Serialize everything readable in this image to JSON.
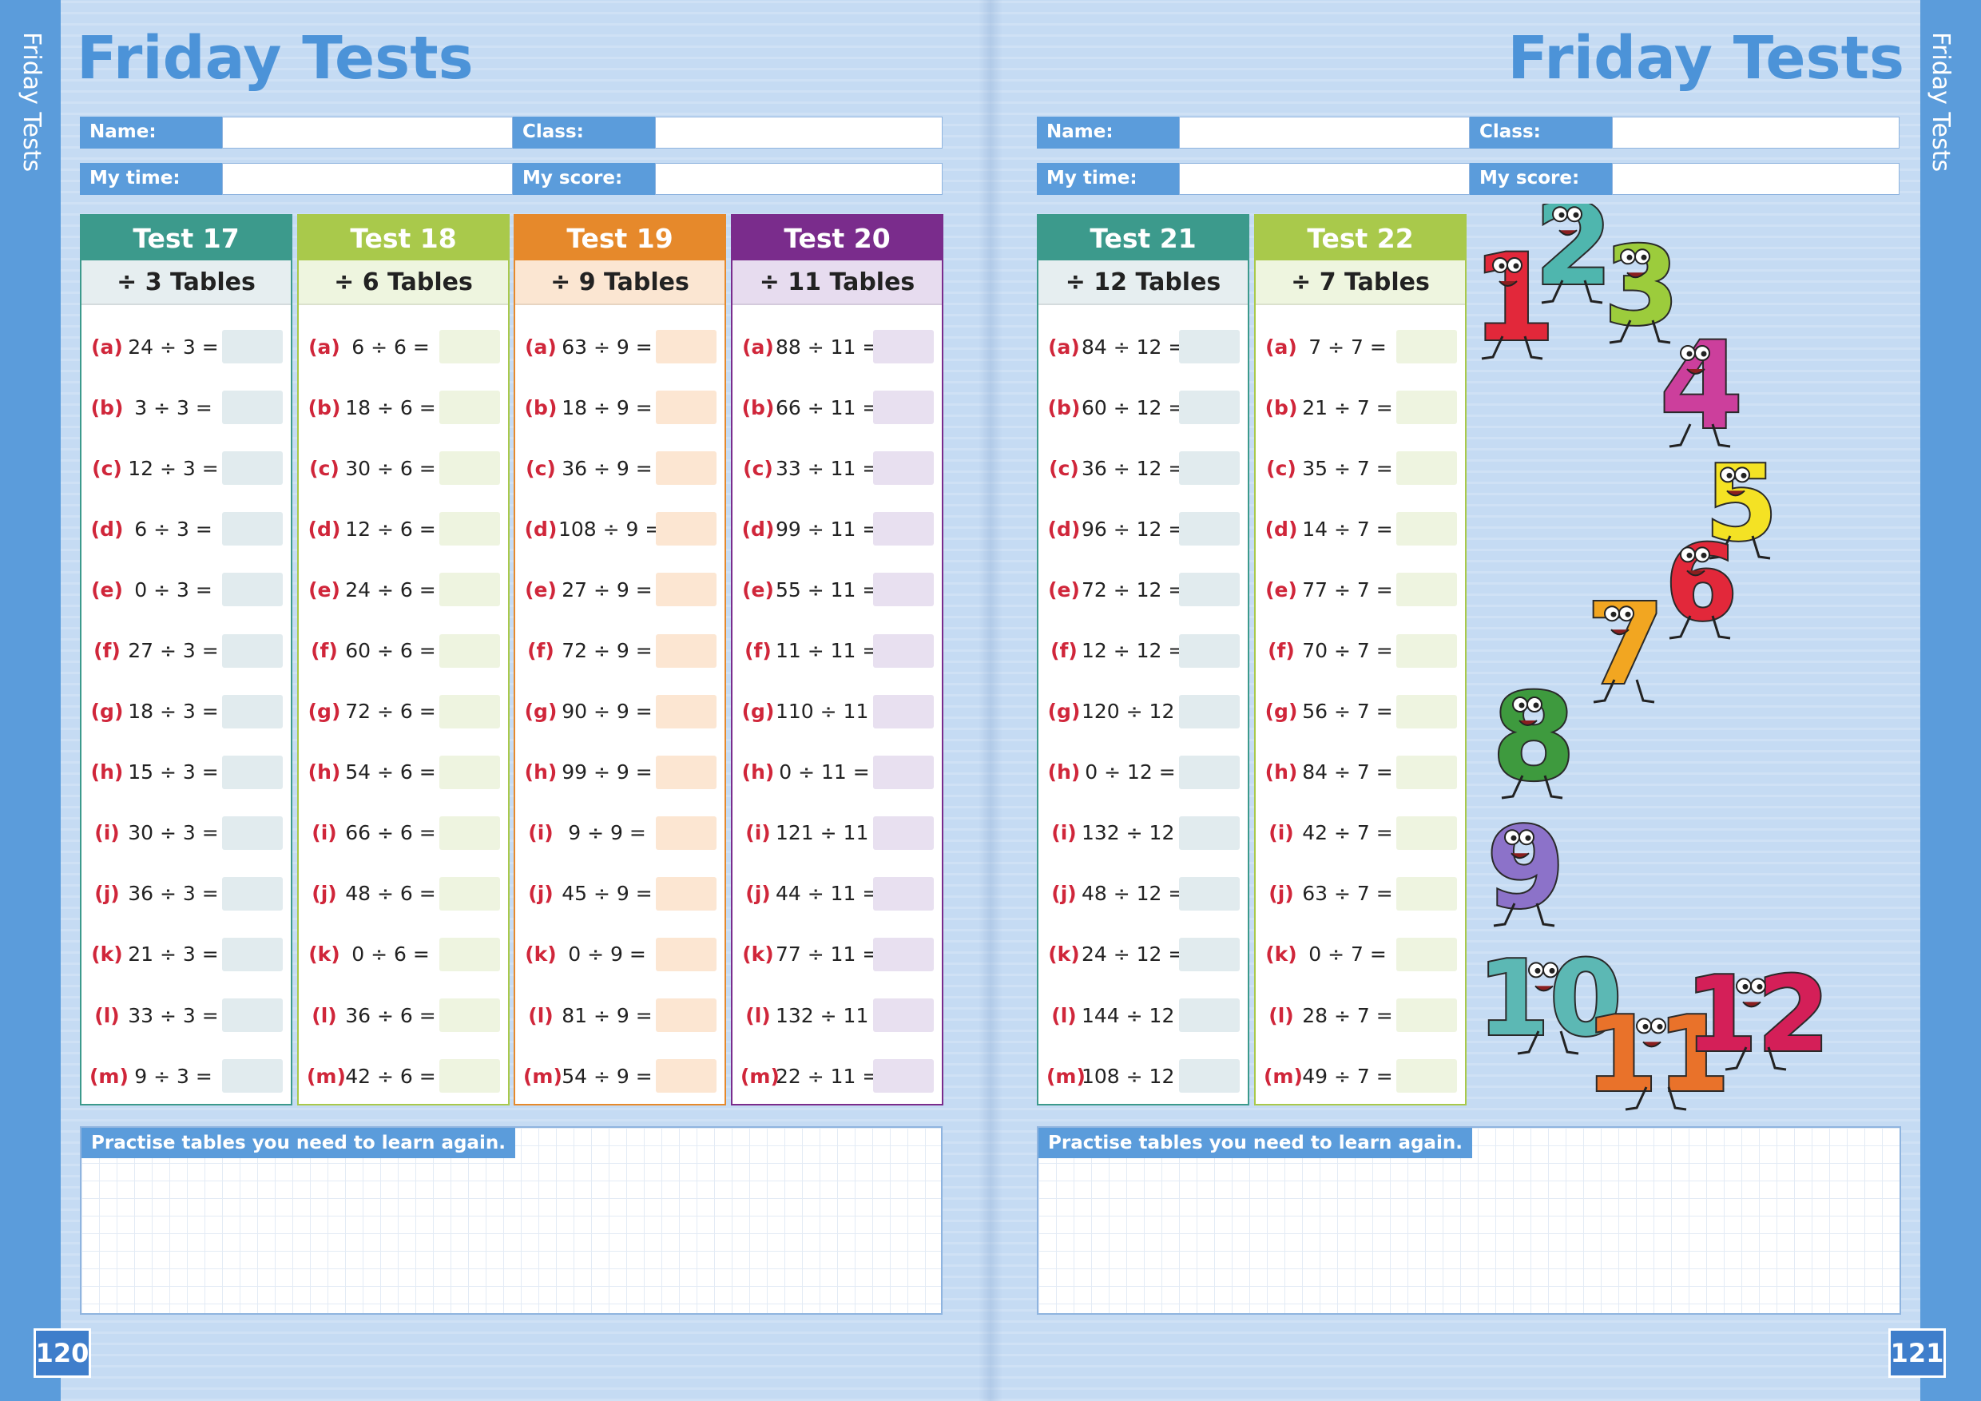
{
  "book": {
    "side_label": "Friday Tests"
  },
  "left_page": {
    "title": "Friday Tests",
    "page_number": "120",
    "fields": {
      "name": "Name:",
      "class": "Class:",
      "my_time": "My time:",
      "my_score": "My score:"
    },
    "practise_label": "Practise tables you need to learn again.",
    "tests": [
      {
        "title": "Test 17",
        "subtitle": "÷ 3 Tables",
        "questions": [
          {
            "letter": "(a)",
            "expr": "24 ÷ 3 ="
          },
          {
            "letter": "(b)",
            "expr": "3 ÷ 3 ="
          },
          {
            "letter": "(c)",
            "expr": "12 ÷ 3 ="
          },
          {
            "letter": "(d)",
            "expr": "6 ÷ 3 ="
          },
          {
            "letter": "(e)",
            "expr": "0 ÷ 3 ="
          },
          {
            "letter": "(f)",
            "expr": "27 ÷ 3 ="
          },
          {
            "letter": "(g)",
            "expr": "18 ÷ 3 ="
          },
          {
            "letter": "(h)",
            "expr": "15 ÷ 3 ="
          },
          {
            "letter": "(i)",
            "expr": "30 ÷ 3 ="
          },
          {
            "letter": "(j)",
            "expr": "36 ÷ 3 ="
          },
          {
            "letter": "(k)",
            "expr": "21 ÷ 3 ="
          },
          {
            "letter": "(l)",
            "expr": "33 ÷ 3 ="
          },
          {
            "letter": "(m)",
            "expr": "9 ÷ 3 ="
          }
        ]
      },
      {
        "title": "Test 18",
        "subtitle": "÷ 6 Tables",
        "questions": [
          {
            "letter": "(a)",
            "expr": "6 ÷ 6 ="
          },
          {
            "letter": "(b)",
            "expr": "18 ÷ 6 ="
          },
          {
            "letter": "(c)",
            "expr": "30 ÷ 6 ="
          },
          {
            "letter": "(d)",
            "expr": "12 ÷ 6 ="
          },
          {
            "letter": "(e)",
            "expr": "24 ÷ 6 ="
          },
          {
            "letter": "(f)",
            "expr": "60 ÷ 6 ="
          },
          {
            "letter": "(g)",
            "expr": "72 ÷ 6 ="
          },
          {
            "letter": "(h)",
            "expr": "54 ÷ 6 ="
          },
          {
            "letter": "(i)",
            "expr": "66 ÷ 6 ="
          },
          {
            "letter": "(j)",
            "expr": "48 ÷ 6 ="
          },
          {
            "letter": "(k)",
            "expr": "0 ÷ 6 ="
          },
          {
            "letter": "(l)",
            "expr": "36 ÷ 6 ="
          },
          {
            "letter": "(m)",
            "expr": "42 ÷ 6 ="
          }
        ]
      },
      {
        "title": "Test 19",
        "subtitle": "÷ 9 Tables",
        "questions": [
          {
            "letter": "(a)",
            "expr": "63 ÷ 9 ="
          },
          {
            "letter": "(b)",
            "expr": "18 ÷ 9 ="
          },
          {
            "letter": "(c)",
            "expr": "36 ÷ 9 ="
          },
          {
            "letter": "(d)",
            "expr": "108 ÷ 9 ="
          },
          {
            "letter": "(e)",
            "expr": "27 ÷ 9 ="
          },
          {
            "letter": "(f)",
            "expr": "72 ÷ 9 ="
          },
          {
            "letter": "(g)",
            "expr": "90 ÷ 9 ="
          },
          {
            "letter": "(h)",
            "expr": "99 ÷ 9 ="
          },
          {
            "letter": "(i)",
            "expr": "9 ÷ 9 ="
          },
          {
            "letter": "(j)",
            "expr": "45 ÷ 9 ="
          },
          {
            "letter": "(k)",
            "expr": "0 ÷ 9 ="
          },
          {
            "letter": "(l)",
            "expr": "81 ÷ 9 ="
          },
          {
            "letter": "(m)",
            "expr": "54 ÷ 9 ="
          }
        ]
      },
      {
        "title": "Test 20",
        "subtitle": "÷ 11 Tables",
        "questions": [
          {
            "letter": "(a)",
            "expr": "88 ÷ 11 ="
          },
          {
            "letter": "(b)",
            "expr": "66 ÷ 11 ="
          },
          {
            "letter": "(c)",
            "expr": "33 ÷ 11 ="
          },
          {
            "letter": "(d)",
            "expr": "99 ÷ 11 ="
          },
          {
            "letter": "(e)",
            "expr": "55 ÷ 11 ="
          },
          {
            "letter": "(f)",
            "expr": "11 ÷ 11 ="
          },
          {
            "letter": "(g)",
            "expr": "110 ÷ 11 ="
          },
          {
            "letter": "(h)",
            "expr": "0 ÷ 11 ="
          },
          {
            "letter": "(i)",
            "expr": "121 ÷ 11 ="
          },
          {
            "letter": "(j)",
            "expr": "44 ÷ 11 ="
          },
          {
            "letter": "(k)",
            "expr": "77 ÷ 11 ="
          },
          {
            "letter": "(l)",
            "expr": "132 ÷ 11 ="
          },
          {
            "letter": "(m)",
            "expr": "22 ÷ 11 ="
          }
        ]
      }
    ]
  },
  "right_page": {
    "title": "Friday Tests",
    "page_number": "121",
    "fields": {
      "name": "Name:",
      "class": "Class:",
      "my_time": "My time:",
      "my_score": "My score:"
    },
    "practise_label": "Practise tables you need to learn again.",
    "tests": [
      {
        "title": "Test 21",
        "subtitle": "÷ 12 Tables",
        "questions": [
          {
            "letter": "(a)",
            "expr": "84 ÷ 12 ="
          },
          {
            "letter": "(b)",
            "expr": "60 ÷ 12 ="
          },
          {
            "letter": "(c)",
            "expr": "36 ÷ 12 ="
          },
          {
            "letter": "(d)",
            "expr": "96 ÷ 12 ="
          },
          {
            "letter": "(e)",
            "expr": "72 ÷ 12 ="
          },
          {
            "letter": "(f)",
            "expr": "12 ÷ 12 ="
          },
          {
            "letter": "(g)",
            "expr": "120 ÷ 12 ="
          },
          {
            "letter": "(h)",
            "expr": "0 ÷ 12 ="
          },
          {
            "letter": "(i)",
            "expr": "132 ÷ 12 ="
          },
          {
            "letter": "(j)",
            "expr": "48 ÷ 12 ="
          },
          {
            "letter": "(k)",
            "expr": "24 ÷ 12 ="
          },
          {
            "letter": "(l)",
            "expr": "144 ÷ 12 ="
          },
          {
            "letter": "(m)",
            "expr": "108 ÷ 12 ="
          }
        ]
      },
      {
        "title": "Test 22",
        "subtitle": "÷ 7 Tables",
        "questions": [
          {
            "letter": "(a)",
            "expr": "7 ÷ 7 ="
          },
          {
            "letter": "(b)",
            "expr": "21 ÷ 7 ="
          },
          {
            "letter": "(c)",
            "expr": "35 ÷ 7 ="
          },
          {
            "letter": "(d)",
            "expr": "14 ÷ 7 ="
          },
          {
            "letter": "(e)",
            "expr": "77 ÷ 7 ="
          },
          {
            "letter": "(f)",
            "expr": "70 ÷ 7 ="
          },
          {
            "letter": "(g)",
            "expr": "56 ÷ 7 ="
          },
          {
            "letter": "(h)",
            "expr": "84 ÷ 7 ="
          },
          {
            "letter": "(i)",
            "expr": "42 ÷ 7 ="
          },
          {
            "letter": "(j)",
            "expr": "63 ÷ 7 ="
          },
          {
            "letter": "(k)",
            "expr": "0 ÷ 7 ="
          },
          {
            "letter": "(l)",
            "expr": "28 ÷ 7 ="
          },
          {
            "letter": "(m)",
            "expr": "49 ÷ 7 ="
          }
        ]
      }
    ],
    "mascots": [
      {
        "digit": "1",
        "color": "#e2283a"
      },
      {
        "digit": "2",
        "color": "#4fb6ae"
      },
      {
        "digit": "3",
        "color": "#9ccc3c"
      },
      {
        "digit": "4",
        "color": "#cc3f9c"
      },
      {
        "digit": "5",
        "color": "#f4e224"
      },
      {
        "digit": "6",
        "color": "#e2283a"
      },
      {
        "digit": "7",
        "color": "#f2a621"
      },
      {
        "digit": "8",
        "color": "#3e9a3e"
      },
      {
        "digit": "9",
        "color": "#8c72c9"
      },
      {
        "digit": "10",
        "color": "#5cb8b4"
      },
      {
        "digit": "11",
        "color": "#e9722a"
      },
      {
        "digit": "12",
        "color": "#d41f58"
      }
    ]
  },
  "colors": {
    "test17": "#3c9a8c",
    "test18": "#a9c94b",
    "test19": "#e6892b",
    "test20": "#7a2c8c",
    "test21": "#3c9a8c",
    "test22": "#a9c94b",
    "title_blue": "#4c93d8",
    "sidebar_blue": "#5b9cdb",
    "letter_red": "#d0263a"
  }
}
